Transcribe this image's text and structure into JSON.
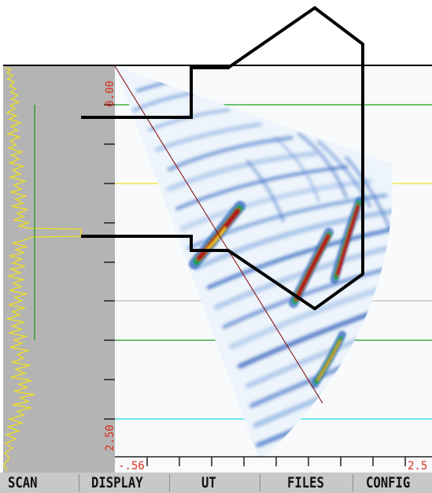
{
  "scan_view": {
    "depth_axis": {
      "top_label": "0.00",
      "bottom_label": "2.50"
    },
    "index_axis": {
      "left_label": "-.56",
      "right_label": "2.5"
    },
    "colors": {
      "amplitude_trace": "#f0e020",
      "depth_scale_text": "#d83020",
      "gate_a": "#1e9a1e",
      "gate_b": "#f0e020",
      "gate_c": "#20d8e0",
      "grid_line": "#b0b0b0",
      "cursor_line": "#800000",
      "overlay_outline": "#000000",
      "panel_background": "#b4b4b4",
      "scan_background": "#f8fafc"
    }
  },
  "menu": {
    "items": [
      {
        "label": "SCAN"
      },
      {
        "label": "DISPLAY"
      },
      {
        "label": "UT"
      },
      {
        "label": "FILES"
      },
      {
        "label": "CONFIG"
      }
    ]
  }
}
